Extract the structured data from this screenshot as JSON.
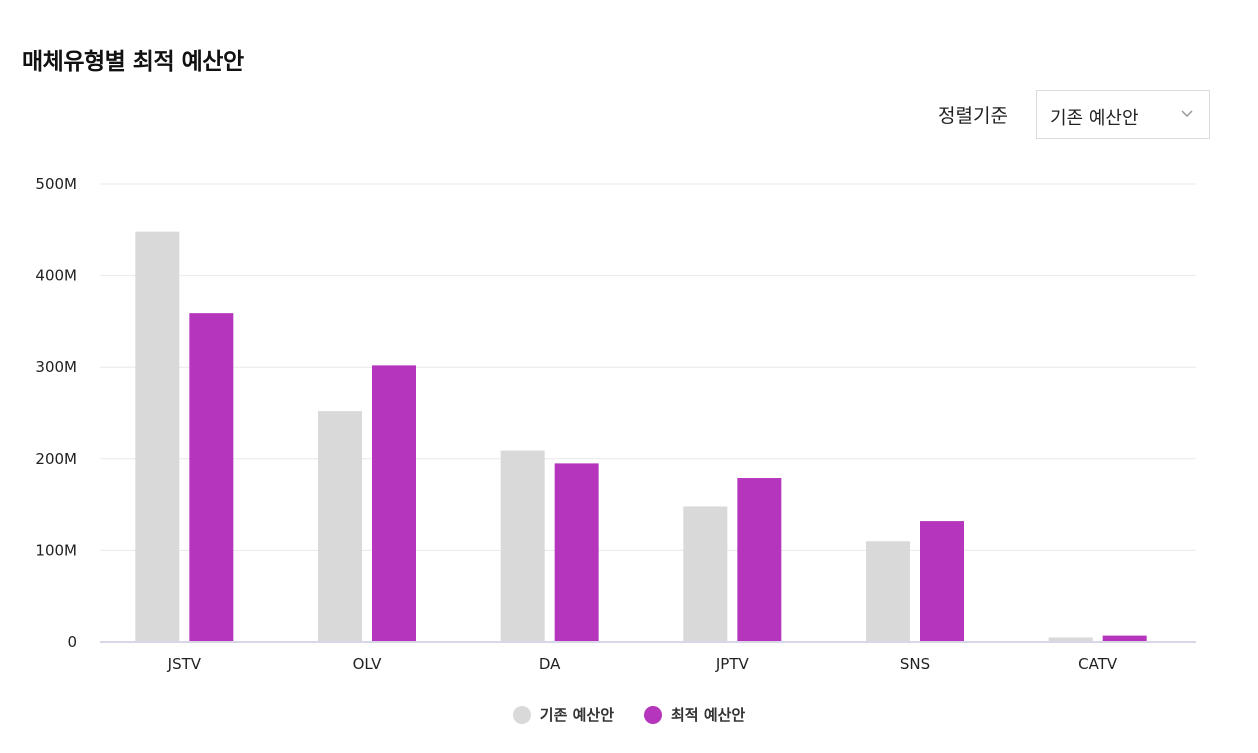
{
  "title": "매체유형별 최적 예산안",
  "sort": {
    "label": "정렬기준",
    "selected": "기존 예산안"
  },
  "colors": {
    "existing": "#d9d9d9",
    "optimal": "#b536bc",
    "grid": "#e8e8ee",
    "baseline": "#d9d6ea"
  },
  "chart_data": {
    "type": "bar",
    "categories": [
      "JSTV",
      "OLV",
      "DA",
      "JPTV",
      "SNS",
      "CATV"
    ],
    "series": [
      {
        "name": "기존 예산안",
        "values": [
          448,
          252,
          209,
          148,
          110,
          5
        ]
      },
      {
        "name": "최적 예산안",
        "values": [
          359,
          302,
          195,
          179,
          132,
          7
        ]
      }
    ],
    "unit": "M",
    "ylim": [
      0,
      500
    ],
    "yticks": [
      "0",
      "100M",
      "200M",
      "300M",
      "400M",
      "500M"
    ],
    "grid": true,
    "legend_position": "bottom-center"
  }
}
